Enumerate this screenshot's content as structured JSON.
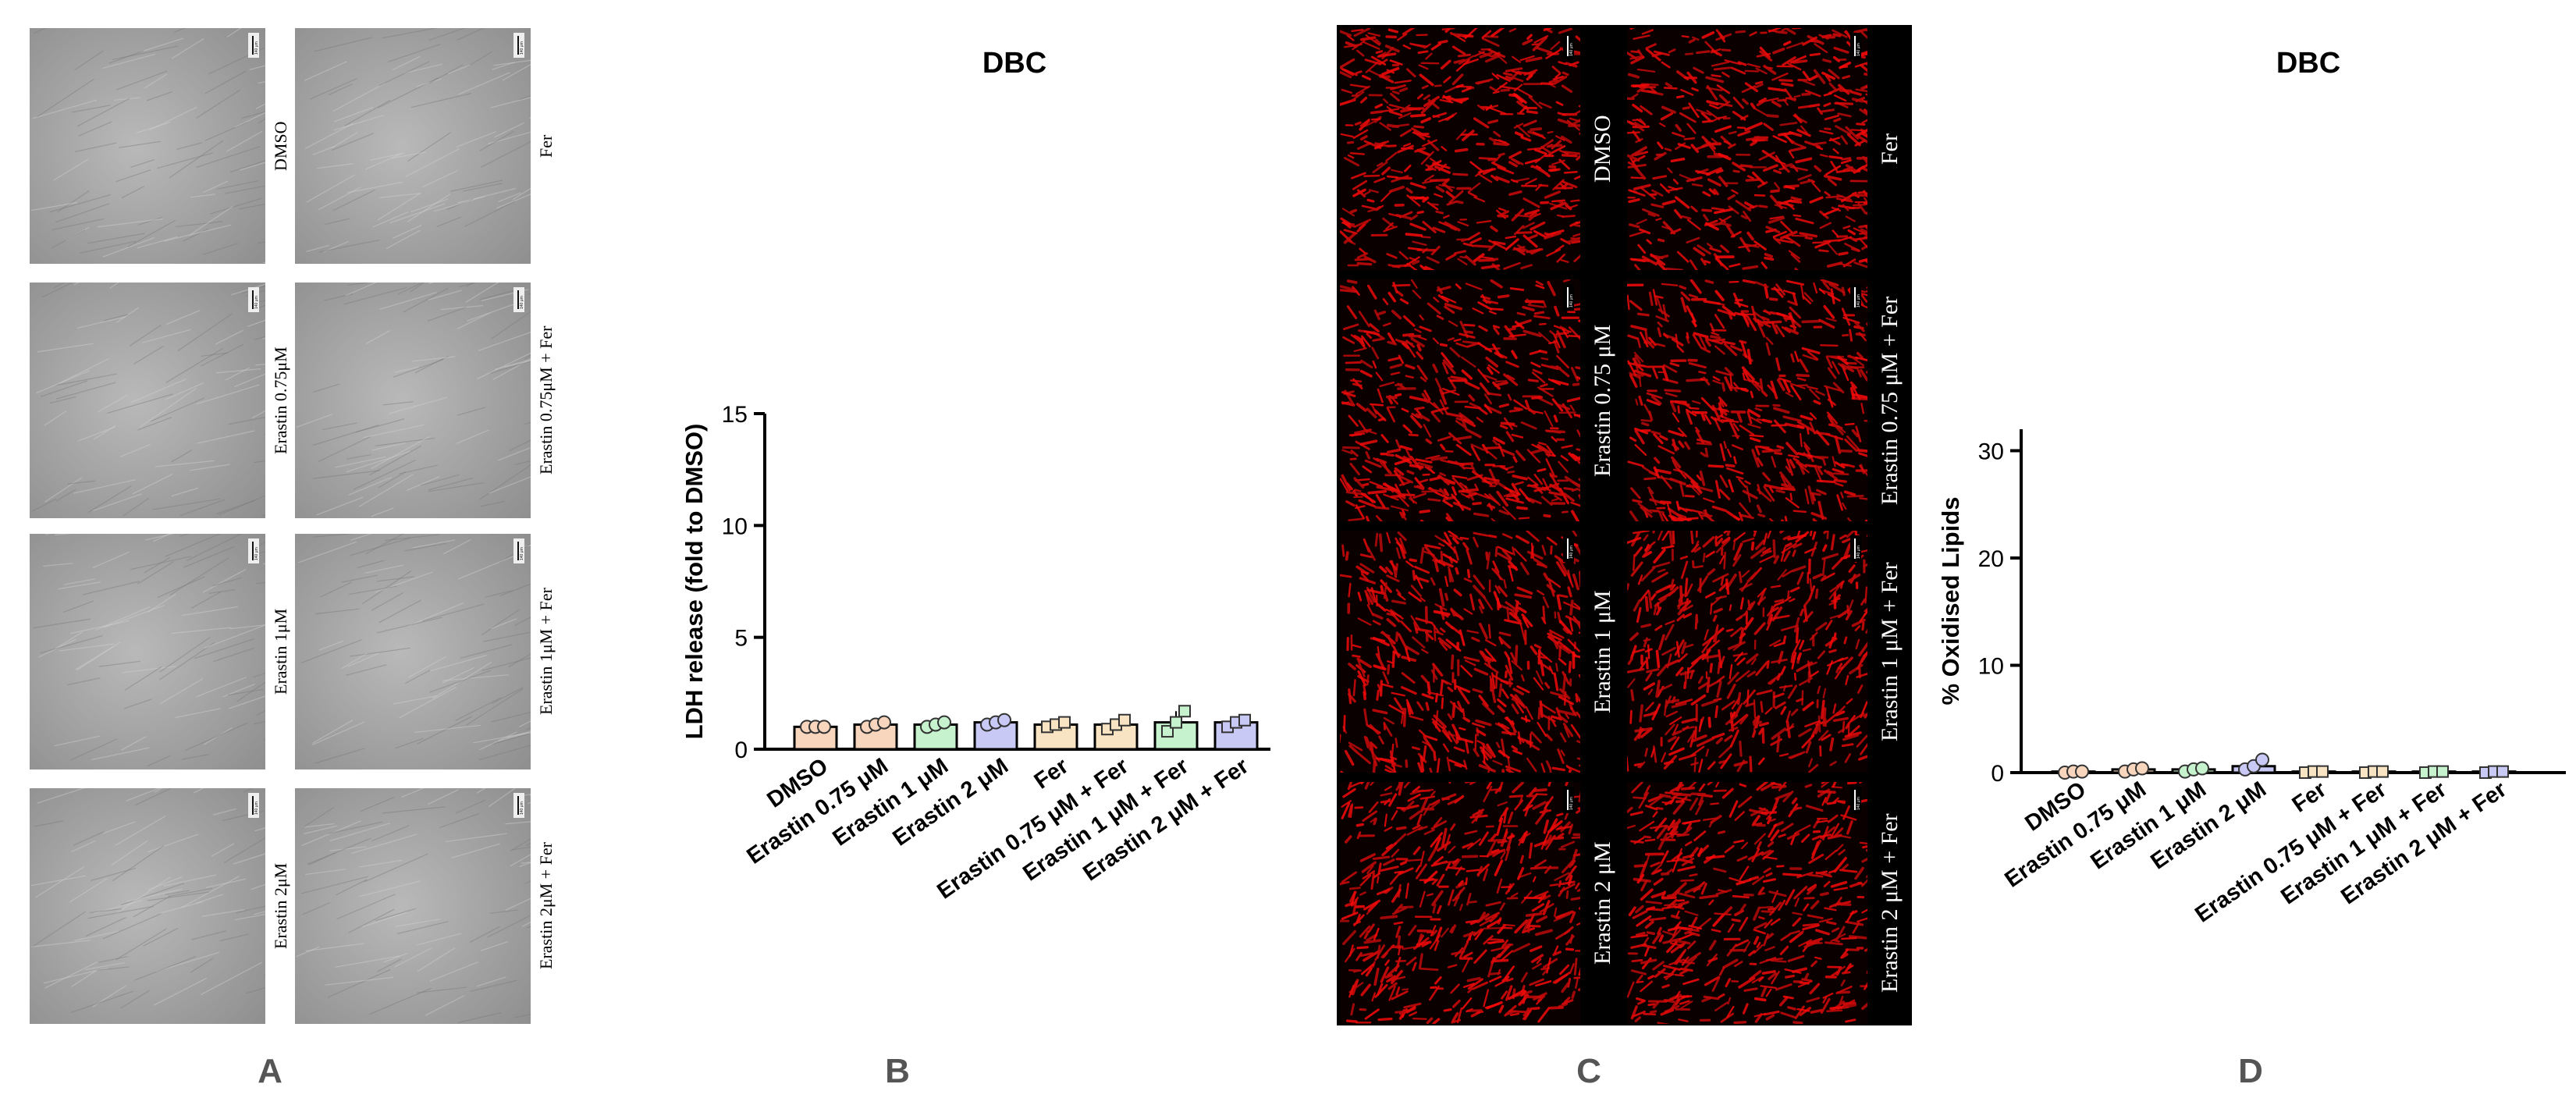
{
  "panel_letters": [
    "A",
    "B",
    "C",
    "D"
  ],
  "panel_a": {
    "labels": [
      "DMSO",
      "Fer",
      "Erastin 0.75μM",
      "Erastin 0.75μM + Fer",
      "Erastin 1μM",
      "Erastin 1μM + Fer",
      "Erastin 2μM",
      "Erastin 2μM + Fer"
    ],
    "scale_bar": "140 μm"
  },
  "panel_c": {
    "labels": [
      "DMSO",
      "Fer",
      "Erastin 0.75 μM",
      "Erastin 0.75 μM + Fer",
      "Erastin 1 μM",
      "Erastin 1 μM + Fer",
      "Erastin 2 μM",
      "Erastin 2 μM + Fer"
    ],
    "scale_bar": "140 μm"
  },
  "chart_data": [
    {
      "type": "bar",
      "panel": "B",
      "title": "DBC",
      "xlabel": "",
      "ylabel": "LDH release (fold to DMSO)",
      "ylim": [
        0,
        15
      ],
      "yticks": [
        0,
        5,
        10,
        15
      ],
      "categories": [
        "DMSO",
        "Erastin 0.75 μM",
        "Erastin 1 μM",
        "Erastin 2 μM",
        "Fer",
        "Erastin 0.75 μM + Fer",
        "Erastin 1 μM + Fer",
        "Erastin 2 μM + Fer"
      ],
      "values": [
        1.0,
        1.1,
        1.1,
        1.2,
        1.1,
        1.1,
        1.2,
        1.2
      ],
      "points": [
        [
          1.0,
          1.0,
          1.0
        ],
        [
          1.0,
          1.1,
          1.2
        ],
        [
          1.0,
          1.1,
          1.2
        ],
        [
          1.1,
          1.2,
          1.3
        ],
        [
          1.0,
          1.1,
          1.2
        ],
        [
          0.9,
          1.1,
          1.3
        ],
        [
          0.8,
          1.2,
          1.7
        ],
        [
          1.0,
          1.2,
          1.3
        ]
      ],
      "colors": [
        "#F8D6BE",
        "#F8D6BE",
        "#C6F2CE",
        "#C9C9F5",
        "#F8E4C3",
        "#F8E4C3",
        "#C6F2CE",
        "#C9C9F5"
      ],
      "markers": [
        "circle",
        "circle",
        "circle",
        "circle",
        "square",
        "square",
        "square",
        "square"
      ]
    },
    {
      "type": "bar",
      "panel": "D",
      "title": "DBC",
      "xlabel": "",
      "ylabel": "% Oxidised Lipids",
      "ylim": [
        0,
        32
      ],
      "yticks": [
        0,
        10,
        20,
        30
      ],
      "categories": [
        "DMSO",
        "Erastin 0.75 μM",
        "Erastin 1 μM",
        "Erastin 2 μM",
        "Fer",
        "Erastin 0.75 μM + Fer",
        "Erastin 1 μM + Fer",
        "Erastin 2 μM + Fer"
      ],
      "values": [
        0.1,
        0.3,
        0.3,
        0.6,
        0.1,
        0.1,
        0.1,
        0.1
      ],
      "points": [
        [
          0.0,
          0.1,
          0.1
        ],
        [
          0.1,
          0.3,
          0.4
        ],
        [
          0.1,
          0.3,
          0.4
        ],
        [
          0.3,
          0.6,
          1.2
        ],
        [
          0.0,
          0.1,
          0.1
        ],
        [
          0.0,
          0.1,
          0.1
        ],
        [
          0.0,
          0.1,
          0.1
        ],
        [
          0.0,
          0.1,
          0.1
        ]
      ],
      "colors": [
        "#F8D6BE",
        "#F8D6BE",
        "#C6F2CE",
        "#C9C9F5",
        "#F8E4C3",
        "#F8E4C3",
        "#C6F2CE",
        "#C9C9F5"
      ],
      "markers": [
        "circle",
        "circle",
        "circle",
        "circle",
        "square",
        "square",
        "square",
        "square"
      ]
    }
  ]
}
